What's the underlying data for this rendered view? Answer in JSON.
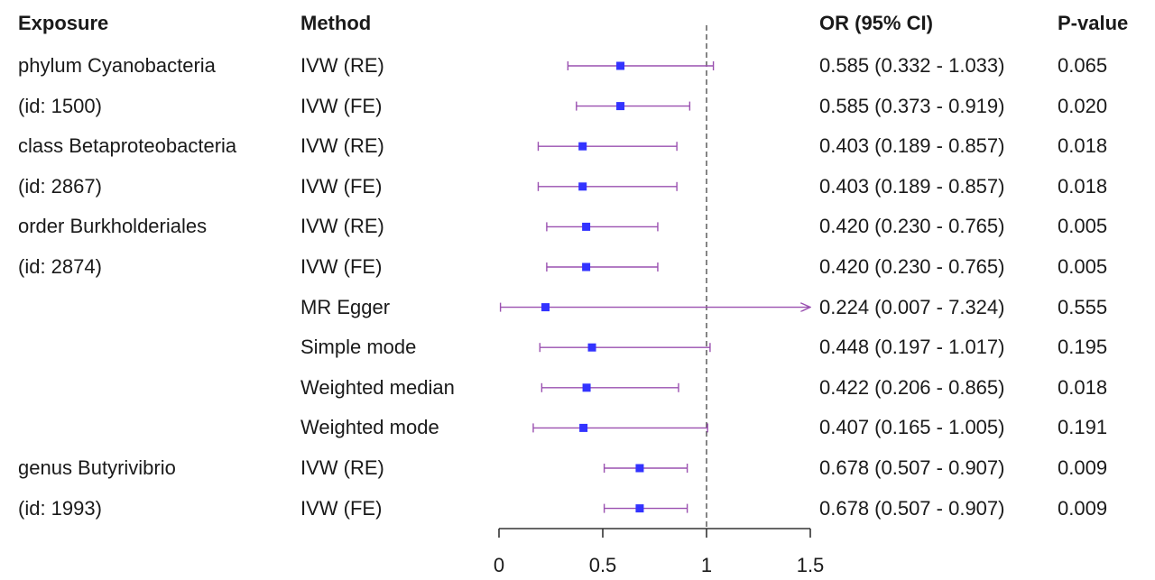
{
  "headers": {
    "exposure": "Exposure",
    "method": "Method",
    "or": "OR (95% CI)",
    "pvalue": "P-value"
  },
  "exposure_labels": [
    "phylum Cyanobacteria",
    "(id: 1500)",
    "class Betaproteobacteria",
    "(id: 2867)",
    "order Burkholderiales",
    "(id: 2874)",
    "",
    "",
    "",
    "",
    "genus Butyrivibrio",
    "(id: 1993)"
  ],
  "chart_data": {
    "type": "forest",
    "xlim": [
      0,
      1.5
    ],
    "xticks": [
      0,
      0.5,
      1,
      1.5
    ],
    "xtick_labels": [
      "0",
      "0.5",
      "1",
      "1.5"
    ],
    "reference_line": 1,
    "colors": {
      "point": "#3333ff",
      "ci_line": "#9a50b0",
      "ref_line": "#444444"
    },
    "rows": [
      {
        "method": "IVW (RE)",
        "or": 0.585,
        "lower": 0.332,
        "upper": 1.033,
        "or_text": "0.585 (0.332 - 1.033)",
        "p": "0.065"
      },
      {
        "method": "IVW (FE)",
        "or": 0.585,
        "lower": 0.373,
        "upper": 0.919,
        "or_text": "0.585 (0.373 - 0.919)",
        "p": "0.020"
      },
      {
        "method": "IVW (RE)",
        "or": 0.403,
        "lower": 0.189,
        "upper": 0.857,
        "or_text": "0.403 (0.189 - 0.857)",
        "p": "0.018"
      },
      {
        "method": "IVW (FE)",
        "or": 0.403,
        "lower": 0.189,
        "upper": 0.857,
        "or_text": "0.403 (0.189 - 0.857)",
        "p": "0.018"
      },
      {
        "method": "IVW (RE)",
        "or": 0.42,
        "lower": 0.23,
        "upper": 0.765,
        "or_text": "0.420 (0.230 - 0.765)",
        "p": "0.005"
      },
      {
        "method": "IVW (FE)",
        "or": 0.42,
        "lower": 0.23,
        "upper": 0.765,
        "or_text": "0.420 (0.230 - 0.765)",
        "p": "0.005"
      },
      {
        "method": "MR Egger",
        "or": 0.224,
        "lower": 0.007,
        "upper": 7.324,
        "or_text": "0.224 (0.007 - 7.324)",
        "p": "0.555"
      },
      {
        "method": "Simple mode",
        "or": 0.448,
        "lower": 0.197,
        "upper": 1.017,
        "or_text": "0.448 (0.197 - 1.017)",
        "p": "0.195"
      },
      {
        "method": "Weighted median",
        "or": 0.422,
        "lower": 0.206,
        "upper": 0.865,
        "or_text": "0.422 (0.206 - 0.865)",
        "p": "0.018"
      },
      {
        "method": "Weighted mode",
        "or": 0.407,
        "lower": 0.165,
        "upper": 1.005,
        "or_text": "0.407 (0.165 - 1.005)",
        "p": "0.191"
      },
      {
        "method": "IVW (RE)",
        "or": 0.678,
        "lower": 0.507,
        "upper": 0.907,
        "or_text": "0.678 (0.507 - 0.907)",
        "p": "0.009"
      },
      {
        "method": "IVW (FE)",
        "or": 0.678,
        "lower": 0.507,
        "upper": 0.907,
        "or_text": "0.678 (0.507 - 0.907)",
        "p": "0.009"
      }
    ]
  }
}
